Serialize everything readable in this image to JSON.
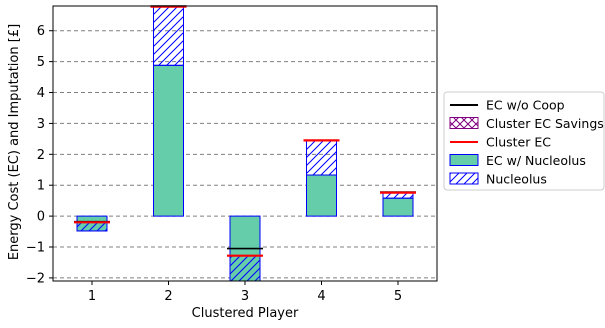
{
  "chart_data": {
    "type": "bar",
    "xlabel": "Clustered Player",
    "ylabel": "Energy Cost (EC) and Imputation [£]",
    "categories": [
      "1",
      "2",
      "3",
      "4",
      "5"
    ],
    "ylim": [
      -2.1,
      6.8
    ],
    "yticks": [
      -2,
      -1,
      0,
      1,
      2,
      3,
      4,
      5,
      6
    ],
    "grid": "y-dashed",
    "legend_position": "right",
    "series": [
      {
        "name": "EC w/o Coop",
        "style": "line",
        "values": [
          -0.18,
          6.8,
          -1.05,
          2.45,
          0.78
        ]
      },
      {
        "name": "Cluster EC Savings",
        "style": "hatched-bar",
        "values": [
          0,
          0,
          0,
          0,
          0
        ]
      },
      {
        "name": "Cluster EC",
        "style": "line",
        "values": [
          -0.2,
          6.78,
          -1.28,
          2.45,
          0.76
        ]
      },
      {
        "name": "EC w/ Nucleolus",
        "style": "bar",
        "values": [
          -0.48,
          4.88,
          -2.1,
          1.33,
          0.58
        ]
      },
      {
        "name": "Nucleolus",
        "style": "hatched-bar",
        "values": [
          0.28,
          1.9,
          0.82,
          1.12,
          0.18
        ]
      }
    ],
    "colors": {
      "ec_wo_coop": "#000000",
      "cluster_ec": "#ff0000",
      "cluster_ec_savings": "#800080",
      "bar_fill": "#66cdaa",
      "bar_edge": "#0000ff",
      "grid": "#808080"
    }
  }
}
